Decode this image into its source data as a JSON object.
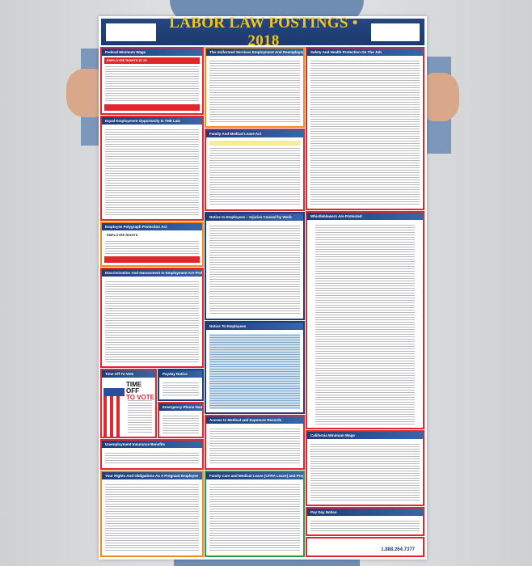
{
  "poster": {
    "title": "LABOR LAW POSTINGS • 2018",
    "sections": {
      "federal_min_wage": "Federal Minimum Wage",
      "fmw_banner": "EMPLOYEE RIGHTS",
      "fmw_rate": "$7.25",
      "eeo": "Equal Employment Opportunity Is THE Law",
      "polygraph": "Employee Polygraph Protection Act",
      "polygraph_banner": "EMPLOYEE RIGHTS",
      "discrimination": "Discrimination And Harassment In Employment Are Prohibited By Law",
      "time_off": "Time Off To Vote",
      "time_off_big1": "TIME OFF",
      "time_off_big2": "TO VOTE",
      "payday": "Payday Notice",
      "emergency": "Emergency Phone Numbers",
      "unemployment": "Unemployment Insurance Benefits",
      "pregnant": "Your Rights And Obligations As A Pregnant Employee",
      "userra": "The Uniformed Services Employment And Reemployment Rights Act",
      "fmla": "Family And Medical Leave Act",
      "injuries": "Notice to Employees – Injuries Caused by Work",
      "notice": "Notice To Employees",
      "medical_records": "Access to Medical and Exposure Records",
      "cfra": "Family Care and Medical Leave (CFRA Leave) and Pregnancy Disability Leave",
      "safety": "Safety And Health Protection On The Job",
      "whistleblowers": "Whistleblowers Are Protected",
      "ca_min_wage": "California Minimum Wage",
      "pay_day": "Pay Day Notice"
    },
    "footer_phone": "1.888.264.7377"
  },
  "colors": {
    "banner": "#1d3d7a",
    "title": "#f2c318",
    "border": "#e3262b"
  }
}
